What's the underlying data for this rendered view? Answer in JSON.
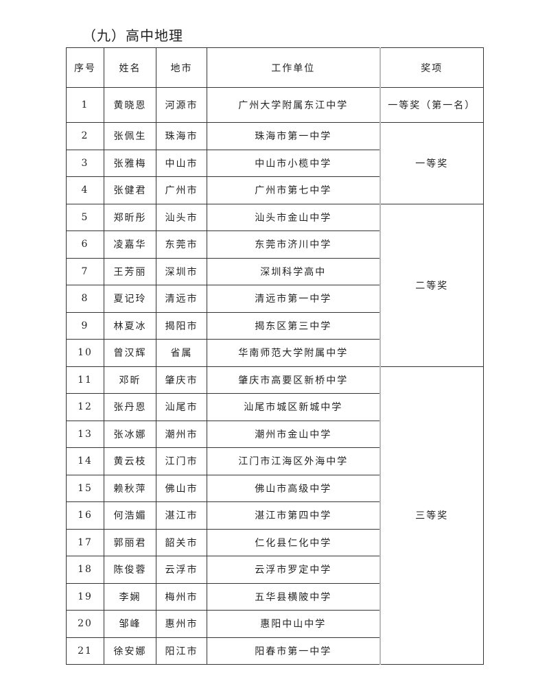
{
  "title": "（九）高中地理",
  "headers": [
    "序号",
    "姓名",
    "地市",
    "工作单位",
    "奖项"
  ],
  "rows": [
    {
      "no": "1",
      "name": "黄晓恩",
      "city": "河源市",
      "unit": "广州大学附属东江中学"
    },
    {
      "no": "2",
      "name": "张佩生",
      "city": "珠海市",
      "unit": "珠海市第一中学"
    },
    {
      "no": "3",
      "name": "张雅梅",
      "city": "中山市",
      "unit": "中山市小榄中学"
    },
    {
      "no": "4",
      "name": "张健君",
      "city": "广州市",
      "unit": "广州市第七中学"
    },
    {
      "no": "5",
      "name": "郑昕彤",
      "city": "汕头市",
      "unit": "汕头市金山中学"
    },
    {
      "no": "6",
      "name": "凌嘉华",
      "city": "东莞市",
      "unit": "东莞市济川中学"
    },
    {
      "no": "7",
      "name": "王芳丽",
      "city": "深圳市",
      "unit": "深圳科学高中"
    },
    {
      "no": "8",
      "name": "夏记玲",
      "city": "清远市",
      "unit": "清远市第一中学"
    },
    {
      "no": "9",
      "name": "林夏冰",
      "city": "揭阳市",
      "unit": "揭东区第三中学"
    },
    {
      "no": "10",
      "name": "曾汉辉",
      "city": "省属",
      "unit": "华南师范大学附属中学"
    },
    {
      "no": "11",
      "name": "邓昕",
      "city": "肇庆市",
      "unit": "肇庆市高要区新桥中学"
    },
    {
      "no": "12",
      "name": "张丹恩",
      "city": "汕尾市",
      "unit": "汕尾市城区新城中学"
    },
    {
      "no": "13",
      "name": "张冰娜",
      "city": "潮州市",
      "unit": "潮州市金山中学"
    },
    {
      "no": "14",
      "name": "黄云枝",
      "city": "江门市",
      "unit": "江门市江海区外海中学"
    },
    {
      "no": "15",
      "name": "赖秋萍",
      "city": "佛山市",
      "unit": "佛山市高级中学"
    },
    {
      "no": "16",
      "name": "何浩媚",
      "city": "湛江市",
      "unit": "湛江市第四中学"
    },
    {
      "no": "17",
      "name": "郭丽君",
      "city": "韶关市",
      "unit": "仁化县仁化中学"
    },
    {
      "no": "18",
      "name": "陈俊蓉",
      "city": "云浮市",
      "unit": "云浮市罗定中学"
    },
    {
      "no": "19",
      "name": "李娴",
      "city": "梅州市",
      "unit": "五华县横陂中学"
    },
    {
      "no": "20",
      "name": "邹峰",
      "city": "惠州市",
      "unit": "惠阳中山中学"
    },
    {
      "no": "21",
      "name": "徐安娜",
      "city": "阳江市",
      "unit": "阳春市第一中学"
    }
  ],
  "awards": [
    {
      "label": "一等奖（第一名）",
      "start": 1,
      "span": 1
    },
    {
      "label": "一等奖",
      "start": 2,
      "span": 3
    },
    {
      "label": "二等奖",
      "start": 5,
      "span": 6
    },
    {
      "label": "三等奖",
      "start": 11,
      "span": 11
    }
  ]
}
